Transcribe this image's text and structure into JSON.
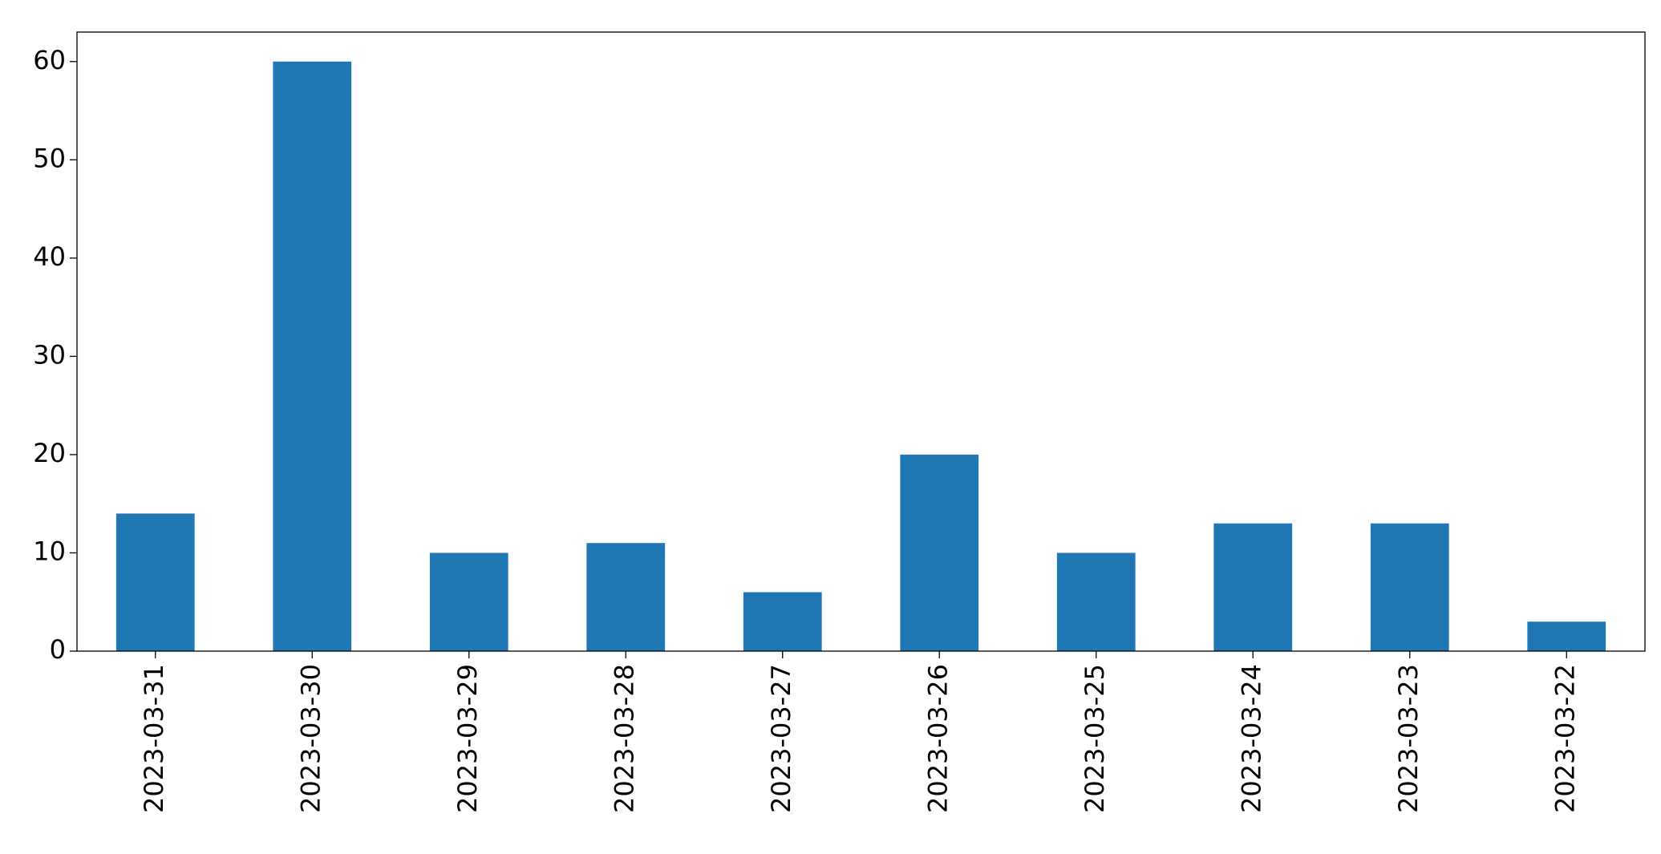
{
  "chart_data": {
    "type": "bar",
    "categories": [
      "2023-03-31",
      "2023-03-30",
      "2023-03-29",
      "2023-03-28",
      "2023-03-27",
      "2023-03-26",
      "2023-03-25",
      "2023-03-24",
      "2023-03-23",
      "2023-03-22"
    ],
    "values": [
      14,
      60,
      10,
      11,
      6,
      20,
      10,
      13,
      13,
      3
    ],
    "color": "#1f77b4",
    "ylim": [
      0,
      63
    ],
    "yticks": [
      0,
      10,
      20,
      30,
      40,
      50,
      60
    ],
    "grid": false
  }
}
